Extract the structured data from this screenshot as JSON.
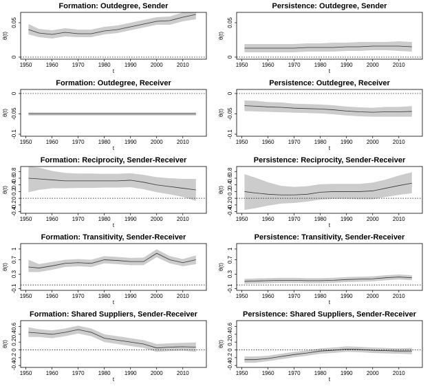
{
  "chart_data": [
    {
      "type": "line",
      "title": "Formation: Outdegree, Sender",
      "xlabel": "t",
      "ylabel": "θ(t)",
      "x": [
        1951,
        1955,
        1960,
        1965,
        1970,
        1975,
        1980,
        1985,
        1990,
        1995,
        2000,
        2005,
        2010,
        2015
      ],
      "xlim": [
        1948,
        2019
      ],
      "xticks": [
        1950,
        1960,
        1970,
        1980,
        1990,
        2000,
        2010
      ],
      "ylim": [
        -0.003,
        0.065
      ],
      "yticks": [
        0,
        0.05
      ],
      "hline": 0,
      "band_color": "#cccccc",
      "series": [
        {
          "color": "#333333",
          "values": [
            0.04,
            0.035,
            0.033,
            0.036,
            0.034,
            0.034,
            0.038,
            0.04,
            0.044,
            0.048,
            0.052,
            0.053,
            0.058,
            0.062
          ],
          "lower": [
            0.033,
            0.029,
            0.027,
            0.03,
            0.029,
            0.029,
            0.033,
            0.035,
            0.039,
            0.043,
            0.047,
            0.047,
            0.052,
            0.055
          ],
          "upper": [
            0.048,
            0.041,
            0.039,
            0.042,
            0.04,
            0.04,
            0.044,
            0.046,
            0.05,
            0.054,
            0.058,
            0.059,
            0.065,
            0.068
          ]
        }
      ]
    },
    {
      "type": "line",
      "title": "Persistence: Outdegree, Sender",
      "xlabel": "t",
      "ylabel": "θ(t)",
      "x": [
        1951,
        1955,
        1960,
        1965,
        1970,
        1975,
        1980,
        1985,
        1990,
        1995,
        2000,
        2005,
        2010,
        2015
      ],
      "xlim": [
        1948,
        2019
      ],
      "xticks": [
        1950,
        1960,
        1970,
        1980,
        1990,
        2000,
        2010
      ],
      "ylim": [
        -0.003,
        0.065
      ],
      "yticks": [
        0,
        0.05
      ],
      "hline": 0,
      "band_color": "#cccccc",
      "series": [
        {
          "color": "#333333",
          "values": [
            0.013,
            0.013,
            0.013,
            0.013,
            0.013,
            0.014,
            0.014,
            0.014,
            0.015,
            0.015,
            0.016,
            0.016,
            0.016,
            0.015
          ],
          "lower": [
            0.007,
            0.007,
            0.007,
            0.007,
            0.007,
            0.008,
            0.008,
            0.008,
            0.009,
            0.009,
            0.01,
            0.01,
            0.009,
            0.008
          ],
          "upper": [
            0.019,
            0.019,
            0.019,
            0.019,
            0.019,
            0.02,
            0.02,
            0.021,
            0.021,
            0.022,
            0.022,
            0.022,
            0.023,
            0.022
          ]
        }
      ]
    },
    {
      "type": "line",
      "title": "Formation: Outdegree, Receiver",
      "xlabel": "t",
      "ylabel": "θ(t)",
      "x": [
        1951,
        1955,
        1960,
        1965,
        1970,
        1975,
        1980,
        1985,
        1990,
        1995,
        2000,
        2005,
        2010,
        2015
      ],
      "xlim": [
        1948,
        2019
      ],
      "xticks": [
        1950,
        1960,
        1970,
        1980,
        1990,
        2000,
        2010
      ],
      "ylim": [
        -0.105,
        0.01
      ],
      "yticks": [
        -0.1,
        -0.05,
        0
      ],
      "hline": 0,
      "band_color": "#cccccc",
      "series": [
        {
          "color": "#333333",
          "values": [
            -0.05,
            -0.05,
            -0.05,
            -0.05,
            -0.05,
            -0.05,
            -0.05,
            -0.05,
            -0.05,
            -0.05,
            -0.05,
            -0.05,
            -0.05,
            -0.05
          ],
          "lower": [
            -0.054,
            -0.054,
            -0.054,
            -0.054,
            -0.054,
            -0.054,
            -0.054,
            -0.054,
            -0.054,
            -0.054,
            -0.054,
            -0.054,
            -0.054,
            -0.054
          ],
          "upper": [
            -0.046,
            -0.046,
            -0.046,
            -0.046,
            -0.046,
            -0.046,
            -0.046,
            -0.046,
            -0.046,
            -0.046,
            -0.046,
            -0.046,
            -0.046,
            -0.046
          ]
        }
      ]
    },
    {
      "type": "line",
      "title": "Persistence: Outdegree, Receiver",
      "xlabel": "t",
      "ylabel": "θ(t)",
      "x": [
        1951,
        1955,
        1960,
        1965,
        1970,
        1975,
        1980,
        1985,
        1990,
        1995,
        2000,
        2005,
        2010,
        2015
      ],
      "xlim": [
        1948,
        2019
      ],
      "xticks": [
        1950,
        1960,
        1970,
        1980,
        1990,
        2000,
        2010
      ],
      "ylim": [
        -0.105,
        0.01
      ],
      "yticks": [
        -0.1,
        -0.05,
        0
      ],
      "hline": 0,
      "band_color": "#cccccc",
      "series": [
        {
          "color": "#333333",
          "values": [
            -0.03,
            -0.031,
            -0.033,
            -0.034,
            -0.036,
            -0.037,
            -0.038,
            -0.04,
            -0.043,
            -0.045,
            -0.046,
            -0.045,
            -0.045,
            -0.044
          ],
          "lower": [
            -0.043,
            -0.044,
            -0.045,
            -0.046,
            -0.047,
            -0.048,
            -0.049,
            -0.051,
            -0.054,
            -0.056,
            -0.057,
            -0.057,
            -0.057,
            -0.057
          ],
          "upper": [
            -0.017,
            -0.018,
            -0.021,
            -0.022,
            -0.025,
            -0.026,
            -0.027,
            -0.029,
            -0.032,
            -0.034,
            -0.035,
            -0.033,
            -0.033,
            -0.031
          ]
        }
      ]
    },
    {
      "type": "line",
      "title": "Formation: Reciprocity, Sender-Receiver",
      "xlabel": "t",
      "ylabel": "θ(t)",
      "x": [
        1951,
        1955,
        1960,
        1965,
        1970,
        1975,
        1980,
        1985,
        1990,
        1995,
        2000,
        2005,
        2010,
        2015
      ],
      "xlim": [
        1948,
        2019
      ],
      "xticks": [
        1950,
        1960,
        1970,
        1980,
        1990,
        2000,
        2010
      ],
      "ylim": [
        -0.45,
        0.95
      ],
      "yticks": [
        -0.4,
        -0.2,
        0,
        0.2,
        0.4,
        0.6,
        0.8
      ],
      "hline": 0,
      "band_color": "#cccccc",
      "series": [
        {
          "color": "#333333",
          "values": [
            0.6,
            0.58,
            0.55,
            0.52,
            0.52,
            0.52,
            0.52,
            0.52,
            0.54,
            0.48,
            0.4,
            0.35,
            0.3,
            0.25
          ],
          "lower": [
            0.18,
            0.25,
            0.3,
            0.3,
            0.31,
            0.31,
            0.32,
            0.32,
            0.33,
            0.27,
            0.18,
            0.12,
            0.04,
            -0.08
          ],
          "upper": [
            1.0,
            0.92,
            0.82,
            0.76,
            0.74,
            0.74,
            0.73,
            0.73,
            0.75,
            0.7,
            0.63,
            0.6,
            0.58,
            0.58
          ]
        }
      ]
    },
    {
      "type": "line",
      "title": "Persistence: Reciprocity, Sender-Receiver",
      "xlabel": "t",
      "ylabel": "θ(t)",
      "x": [
        1951,
        1955,
        1960,
        1965,
        1970,
        1975,
        1980,
        1985,
        1990,
        1995,
        2000,
        2005,
        2010,
        2015
      ],
      "xlim": [
        1948,
        2019
      ],
      "xticks": [
        1950,
        1960,
        1970,
        1980,
        1990,
        2000,
        2010
      ],
      "ylim": [
        -0.45,
        0.95
      ],
      "yticks": [
        -0.4,
        -0.2,
        0,
        0.2,
        0.4,
        0.6,
        0.8
      ],
      "hline": 0,
      "band_color": "#cccccc",
      "series": [
        {
          "color": "#333333",
          "values": [
            0.2,
            0.16,
            0.12,
            0.1,
            0.1,
            0.12,
            0.18,
            0.2,
            0.2,
            0.2,
            0.22,
            0.3,
            0.38,
            0.45
          ],
          "lower": [
            -0.35,
            -0.3,
            -0.22,
            -0.16,
            -0.14,
            -0.1,
            -0.04,
            -0.02,
            -0.02,
            -0.03,
            -0.03,
            0.04,
            0.1,
            0.15
          ],
          "upper": [
            0.72,
            0.62,
            0.48,
            0.37,
            0.34,
            0.36,
            0.42,
            0.43,
            0.43,
            0.43,
            0.47,
            0.56,
            0.68,
            0.78
          ]
        }
      ]
    },
    {
      "type": "line",
      "title": "Formation: Transitivity, Sender-Receiver",
      "xlabel": "t",
      "ylabel": "θ(t)",
      "x": [
        1951,
        1955,
        1960,
        1965,
        1970,
        1975,
        1980,
        1985,
        1990,
        1995,
        2000,
        2005,
        2010,
        2015
      ],
      "xlim": [
        1948,
        2019
      ],
      "xticks": [
        1950,
        1960,
        1970,
        1980,
        1990,
        2000,
        2010
      ],
      "ylim": [
        -0.15,
        1.15
      ],
      "yticks": [
        -0.1,
        0.3,
        0.7,
        1
      ],
      "hline": 0,
      "band_color": "#cccccc",
      "series": [
        {
          "color": "#333333",
          "values": [
            0.5,
            0.47,
            0.53,
            0.6,
            0.62,
            0.6,
            0.7,
            0.68,
            0.65,
            0.65,
            0.88,
            0.7,
            0.62,
            0.7
          ],
          "lower": [
            0.36,
            0.36,
            0.42,
            0.5,
            0.52,
            0.5,
            0.6,
            0.58,
            0.55,
            0.55,
            0.77,
            0.6,
            0.52,
            0.58
          ],
          "upper": [
            0.7,
            0.58,
            0.64,
            0.7,
            0.72,
            0.7,
            0.8,
            0.78,
            0.75,
            0.76,
            0.99,
            0.8,
            0.72,
            0.82
          ]
        }
      ]
    },
    {
      "type": "line",
      "title": "Persistence: Transitivity, Sender-Receiver",
      "xlabel": "t",
      "ylabel": "θ(t)",
      "x": [
        1951,
        1955,
        1960,
        1965,
        1970,
        1975,
        1980,
        1985,
        1990,
        1995,
        2000,
        2005,
        2010,
        2015
      ],
      "xlim": [
        1948,
        2019
      ],
      "xticks": [
        1950,
        1960,
        1970,
        1980,
        1990,
        2000,
        2010
      ],
      "ylim": [
        -0.15,
        1.15
      ],
      "yticks": [
        -0.1,
        0.3,
        0.7,
        1
      ],
      "hline": 0,
      "band_color": "#cccccc",
      "series": [
        {
          "color": "#333333",
          "values": [
            0.1,
            0.11,
            0.12,
            0.13,
            0.13,
            0.12,
            0.12,
            0.13,
            0.15,
            0.16,
            0.17,
            0.2,
            0.22,
            0.2
          ],
          "lower": [
            0.03,
            0.04,
            0.05,
            0.06,
            0.06,
            0.05,
            0.05,
            0.06,
            0.08,
            0.09,
            0.1,
            0.13,
            0.15,
            0.13
          ],
          "upper": [
            0.17,
            0.18,
            0.19,
            0.2,
            0.2,
            0.19,
            0.19,
            0.2,
            0.22,
            0.23,
            0.24,
            0.27,
            0.29,
            0.27
          ]
        }
      ]
    },
    {
      "type": "line",
      "title": "Formation: Shared Suppliers, Sender-Receiver",
      "xlabel": "t",
      "ylabel": "θ(t)",
      "x": [
        1951,
        1955,
        1960,
        1965,
        1970,
        1975,
        1980,
        1985,
        1990,
        1995,
        2000,
        2005,
        2010,
        2015
      ],
      "xlim": [
        1948,
        2019
      ],
      "xticks": [
        1950,
        1960,
        1970,
        1980,
        1990,
        2000,
        2010
      ],
      "ylim": [
        -0.45,
        0.75
      ],
      "yticks": [
        -0.4,
        -0.2,
        0,
        0.2,
        0.4,
        0.6
      ],
      "hline": 0,
      "band_color": "#cccccc",
      "series": [
        {
          "color": "#333333",
          "values": [
            0.45,
            0.43,
            0.4,
            0.45,
            0.52,
            0.45,
            0.3,
            0.25,
            0.2,
            0.15,
            0.05,
            0.07,
            0.08,
            0.07
          ],
          "lower": [
            0.33,
            0.33,
            0.3,
            0.35,
            0.42,
            0.35,
            0.2,
            0.15,
            0.1,
            0.05,
            -0.05,
            -0.03,
            -0.02,
            -0.05
          ],
          "upper": [
            0.58,
            0.53,
            0.5,
            0.55,
            0.62,
            0.55,
            0.4,
            0.35,
            0.3,
            0.25,
            0.15,
            0.17,
            0.18,
            0.19
          ]
        }
      ]
    },
    {
      "type": "line",
      "title": "Persistence: Shared Suppliers, Sender-Receiver",
      "xlabel": "t",
      "ylabel": "θ(t)",
      "x": [
        1951,
        1955,
        1960,
        1965,
        1970,
        1975,
        1980,
        1985,
        1990,
        1995,
        2000,
        2005,
        2010,
        2015
      ],
      "xlim": [
        1948,
        2019
      ],
      "xticks": [
        1950,
        1960,
        1970,
        1980,
        1990,
        2000,
        2010
      ],
      "ylim": [
        -0.45,
        0.75
      ],
      "yticks": [
        -0.4,
        -0.2,
        0,
        0.2,
        0.4,
        0.6
      ],
      "hline": 0,
      "band_color": "#cccccc",
      "series": [
        {
          "color": "#333333",
          "values": [
            -0.25,
            -0.25,
            -0.22,
            -0.17,
            -0.12,
            -0.08,
            -0.03,
            -0.01,
            0.02,
            0.01,
            -0.01,
            -0.02,
            -0.03,
            -0.03
          ],
          "lower": [
            -0.33,
            -0.33,
            -0.29,
            -0.24,
            -0.19,
            -0.15,
            -0.1,
            -0.08,
            -0.05,
            -0.06,
            -0.08,
            -0.09,
            -0.1,
            -0.11
          ],
          "upper": [
            -0.17,
            -0.17,
            -0.15,
            -0.1,
            -0.05,
            -0.01,
            0.04,
            0.06,
            0.09,
            0.08,
            0.06,
            0.05,
            0.04,
            0.05
          ]
        }
      ]
    }
  ]
}
